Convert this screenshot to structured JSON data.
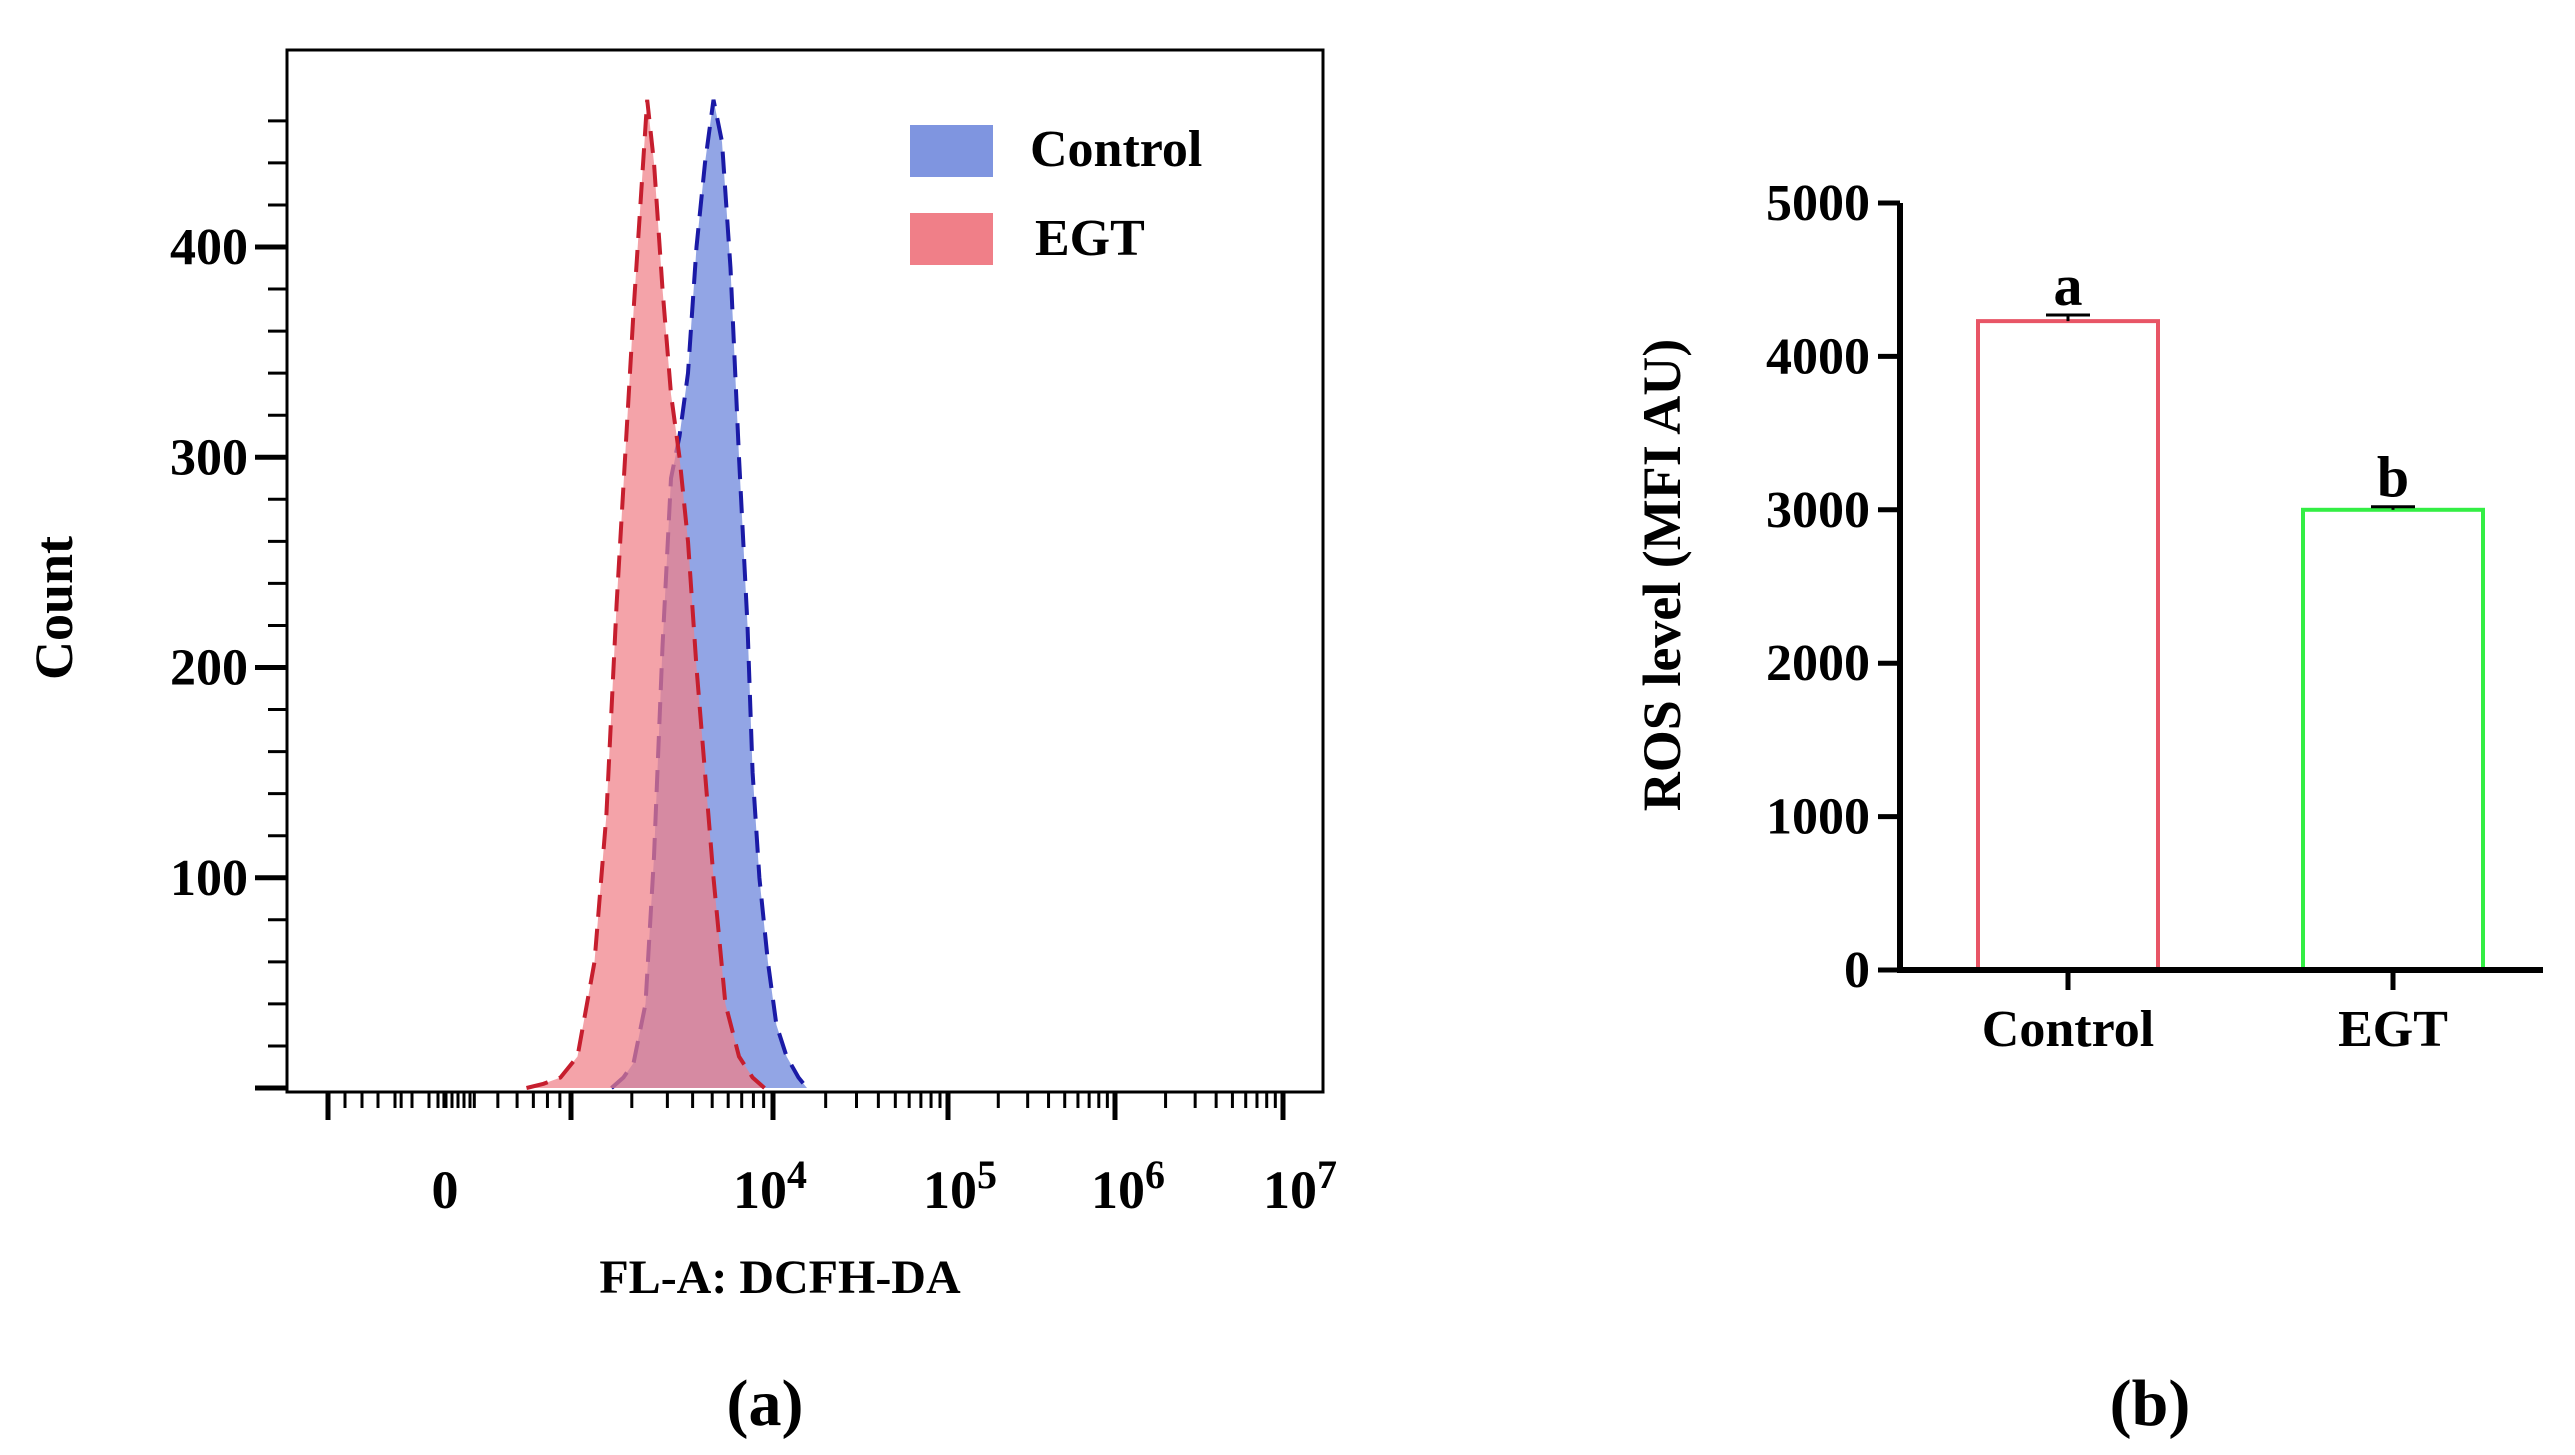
{
  "chart_data": [
    {
      "type": "area",
      "panel_label": "(a)",
      "xlabel": "FL-A: DCFH-DA",
      "ylabel": "Count",
      "x_scale": "biexponential",
      "xlim_log10": [
        2.2,
        7.1
      ],
      "x_ticks": [
        "0",
        "10",
        "10",
        "10",
        "10"
      ],
      "x_tick_exponents": [
        "",
        "4",
        "5",
        "6",
        "7"
      ],
      "ylim": [
        0,
        480
      ],
      "y_ticks": [
        "100",
        "200",
        "300",
        "400"
      ],
      "grid": false,
      "legend": {
        "position": "top-right",
        "entries": [
          "Control",
          "EGT"
        ]
      },
      "colors": {
        "Control_fill": "#7f95e0",
        "Control_line": "#1a1aa6",
        "EGT_fill": "#f07f88",
        "EGT_line": "#c61e2e"
      },
      "series": [
        {
          "name": "Control",
          "log10_x": [
            3.05,
            3.12,
            3.18,
            3.25,
            3.3,
            3.35,
            3.4,
            3.45,
            3.5,
            3.55,
            3.6,
            3.65,
            3.7,
            3.75,
            3.8,
            3.85,
            3.88,
            3.92,
            3.97,
            4.02,
            4.08,
            4.15,
            4.2
          ],
          "counts": [
            0,
            5,
            12,
            40,
            110,
            210,
            290,
            310,
            340,
            400,
            440,
            470,
            450,
            390,
            300,
            220,
            150,
            100,
            60,
            30,
            15,
            5,
            0
          ]
        },
        {
          "name": "EGT",
          "log10_x": [
            2.55,
            2.65,
            2.75,
            2.85,
            2.95,
            3.02,
            3.08,
            3.13,
            3.18,
            3.22,
            3.26,
            3.3,
            3.35,
            3.4,
            3.45,
            3.5,
            3.55,
            3.6,
            3.65,
            3.72,
            3.8,
            3.88,
            3.95
          ],
          "counts": [
            0,
            2,
            5,
            15,
            60,
            130,
            230,
            300,
            370,
            420,
            470,
            440,
            380,
            330,
            300,
            260,
            200,
            150,
            100,
            40,
            15,
            5,
            0
          ]
        }
      ]
    },
    {
      "type": "bar",
      "panel_label": "(b)",
      "categories": [
        "Control",
        "EGT"
      ],
      "values": [
        4230,
        3000
      ],
      "errors": [
        40,
        20
      ],
      "significance_letters": [
        "a",
        "b"
      ],
      "bar_colors": [
        "#e85566",
        "#33ee44"
      ],
      "xlabel": "",
      "ylabel": "ROS level (MFI AU)",
      "ylim": [
        0,
        5000
      ],
      "y_ticks": [
        "0",
        "1000",
        "2000",
        "3000",
        "4000",
        "5000"
      ],
      "grid": false
    }
  ]
}
